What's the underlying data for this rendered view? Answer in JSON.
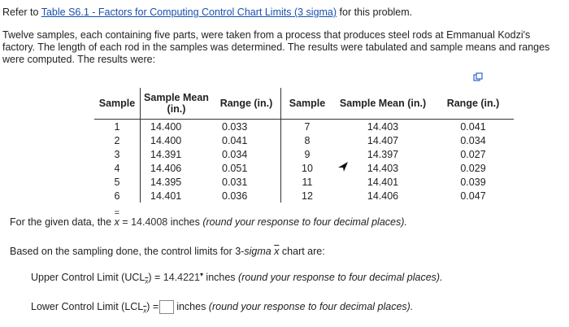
{
  "intro": {
    "prefix": "Refer to ",
    "link": "Table S6.1 - Factors for Computing Control Chart Limits (3 sigma)",
    "suffix": " for this problem."
  },
  "problem_text": "Twelve samples, each containing five parts, were taken from a process that produces steel rods at Emmanual Kodzi's factory. The length of each rod in the samples was determined. The results were tabulated and sample means and ranges were computed. The results were:",
  "table": {
    "headers": [
      "Sample",
      "Sample Mean (in.)",
      "Range (in.)",
      "Sample",
      "Sample Mean (in.)",
      "Range (in.)"
    ],
    "rows": [
      [
        "1",
        "14.400",
        "0.033",
        "7",
        "14.403",
        "0.041"
      ],
      [
        "2",
        "14.400",
        "0.041",
        "8",
        "14.407",
        "0.034"
      ],
      [
        "3",
        "14.391",
        "0.034",
        "9",
        "14.397",
        "0.027"
      ],
      [
        "4",
        "14.406",
        "0.051",
        "10",
        "14.403",
        "0.029"
      ],
      [
        "5",
        "14.395",
        "0.031",
        "11",
        "14.401",
        "0.039"
      ],
      [
        "6",
        "14.401",
        "0.036",
        "12",
        "14.406",
        "0.047"
      ]
    ]
  },
  "grand_mean": {
    "prefix": "For the given data, the ",
    "symbol": "x",
    "equals": " = ",
    "value": "14.4008",
    "unit": " inches ",
    "hint": "(round your response to four decimal places)."
  },
  "based_on": {
    "prefix": "Based on the sampling done, the control limits for 3-",
    "sigma": "sigma",
    "mid": " ",
    "xbar": "x",
    "suffix": " chart are:"
  },
  "ucl": {
    "label": "Upper Control Limit (UCL",
    "sub": "x",
    "after": ") = ",
    "value": "14.4221",
    "unit": " inches ",
    "hint": "(round your response to four decimal places)."
  },
  "lcl": {
    "label": "Lower Control Limit (LCL",
    "sub": "x",
    "after": ") =",
    "value": "",
    "unit": "inches ",
    "hint": "(round your response to four decimal places)."
  }
}
